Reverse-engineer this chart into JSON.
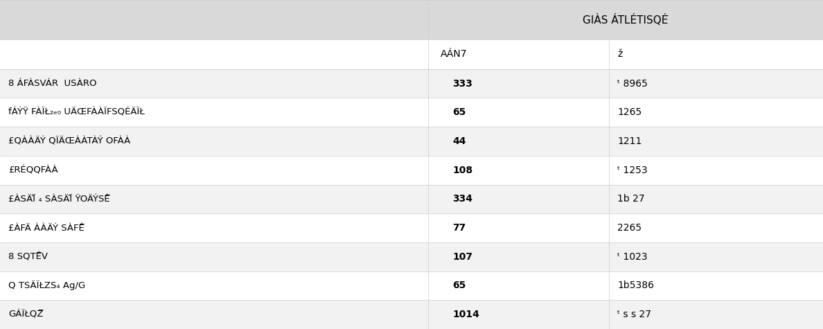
{
  "title": "GIÀS ÁTLÉTISQÉ̅",
  "col1_header": "AÁN7",
  "col2_header": "ž",
  "rows": [
    {
      "label": "8 ÁFÀSVÁR  USÀRO",
      "col1": "333",
      "col2": "ᵗ 8965"
    },
    {
      "label": "fÁÝŸ FÀÏŁ₂ₑ₀ UÄŒFÀÀÏFSQÉÄÏŁ",
      "col1": "65",
      "col2": "1265"
    },
    {
      "label": "£QÀÀÄÝ QÏÄŒÀÀTÀÝ OFÀÀ",
      "col1": "44",
      "col2": "1211"
    },
    {
      "label": "£RÉQQFÀÀ",
      "col1": "108",
      "col2": "ᵗ 1253"
    },
    {
      "label": "£ÀSÄÏ̆ ₄ SÀSÄÏ̆ ŸOÄÝSÉ̅",
      "col1": "334",
      "col2": "1b 27"
    },
    {
      "label": "£ÀFÄ ÀÀÄÝ SÀFÉ̅",
      "col1": "77",
      "col2": "2265"
    },
    {
      "label": "8 SQTÉ̅V",
      "col1": "107",
      "col2": "ᵗ 1023"
    },
    {
      "label": "Q TSÄÏŁZS₄ Ag/G",
      "col1": "65",
      "col2": "1b5386"
    },
    {
      "label": "GÁÏŁQZ̅",
      "col1": "1014",
      "col2": "ᵗ s s 27"
    }
  ],
  "header_bg": "#d9d9d9",
  "subheader_bg": "#ffffff",
  "row_bg_odd": "#f2f2f2",
  "row_bg_even": "#ffffff",
  "text_color": "#000000",
  "fig_width": 11.88,
  "fig_height": 4.75,
  "dpi": 100
}
